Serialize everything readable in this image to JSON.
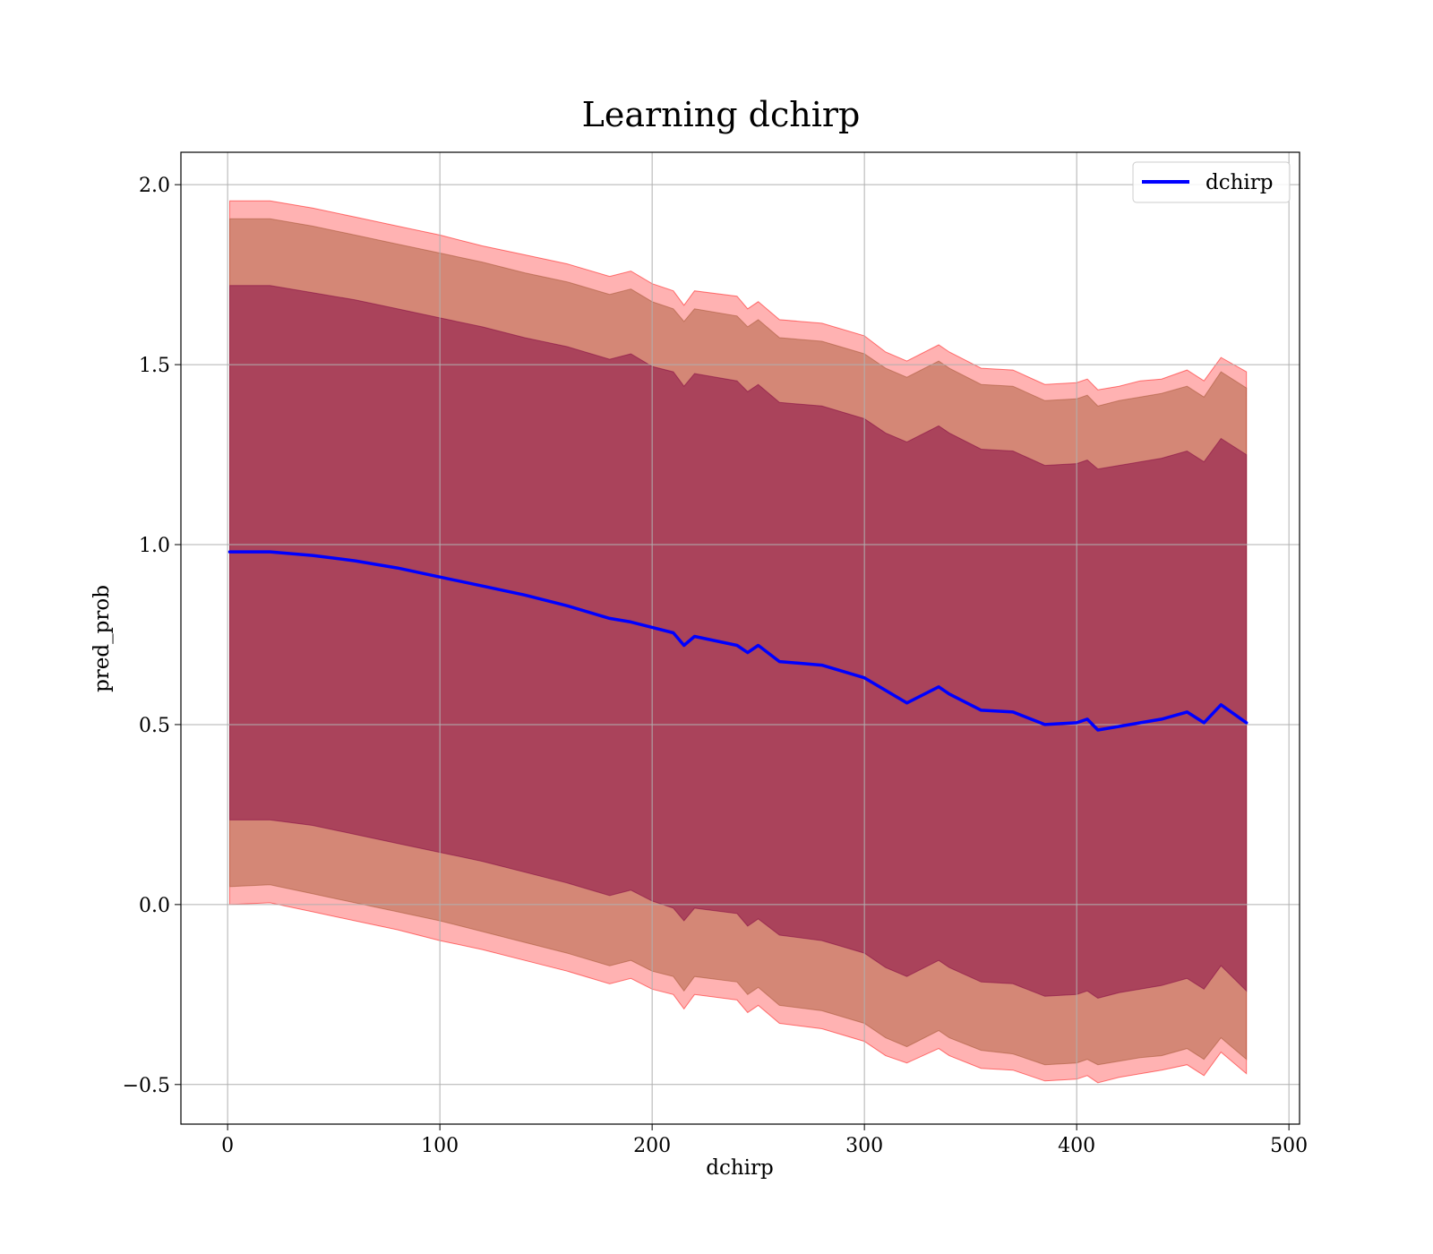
{
  "chart_data": {
    "type": "line",
    "title": "Learning dchirp",
    "xlabel": "dchirp",
    "ylabel": "pred_prob",
    "xlim": [
      -22,
      505
    ],
    "ylim": [
      -0.61,
      2.09
    ],
    "x_ticks": [
      0,
      100,
      200,
      300,
      400,
      500
    ],
    "x_tick_labels": [
      "0",
      "100",
      "200",
      "300",
      "400",
      "500"
    ],
    "y_ticks": [
      -0.5,
      0.0,
      0.5,
      1.0,
      1.5,
      2.0
    ],
    "y_tick_labels": [
      "−0.5",
      "0.0",
      "0.5",
      "1.0",
      "1.5",
      "2.0"
    ],
    "grid": true,
    "legend_position": "top-right",
    "colors": {
      "line": "#0000ff",
      "band_outer": "#ff0000",
      "band_middle": "#a0522d",
      "band_inner": "#800040",
      "grid": "#b0b0b0"
    },
    "x": [
      1,
      20,
      40,
      60,
      80,
      100,
      120,
      140,
      160,
      180,
      190,
      200,
      210,
      215,
      220,
      240,
      245,
      250,
      260,
      280,
      300,
      310,
      320,
      335,
      340,
      355,
      370,
      385,
      400,
      405,
      410,
      420,
      430,
      440,
      452,
      460,
      468,
      480
    ],
    "series": [
      {
        "name": "dchirp",
        "values": [
          0.98,
          0.98,
          0.97,
          0.955,
          0.935,
          0.91,
          0.885,
          0.86,
          0.83,
          0.795,
          0.785,
          0.77,
          0.755,
          0.72,
          0.745,
          0.72,
          0.7,
          0.72,
          0.675,
          0.665,
          0.63,
          0.595,
          0.56,
          0.605,
          0.585,
          0.54,
          0.535,
          0.5,
          0.505,
          0.515,
          0.485,
          0.495,
          0.505,
          0.515,
          0.535,
          0.505,
          0.555,
          0.505
        ]
      }
    ],
    "bands": [
      {
        "level": "outer",
        "upper": [
          1.955,
          1.955,
          1.935,
          1.91,
          1.885,
          1.86,
          1.83,
          1.805,
          1.78,
          1.745,
          1.76,
          1.725,
          1.705,
          1.665,
          1.705,
          1.69,
          1.655,
          1.675,
          1.625,
          1.615,
          1.58,
          1.535,
          1.51,
          1.555,
          1.535,
          1.49,
          1.485,
          1.445,
          1.45,
          1.46,
          1.43,
          1.44,
          1.455,
          1.46,
          1.485,
          1.455,
          1.52,
          1.48
        ],
        "lower": [
          0.0,
          0.005,
          -0.02,
          -0.045,
          -0.07,
          -0.1,
          -0.125,
          -0.155,
          -0.185,
          -0.22,
          -0.205,
          -0.235,
          -0.25,
          -0.29,
          -0.25,
          -0.265,
          -0.3,
          -0.28,
          -0.33,
          -0.345,
          -0.38,
          -0.42,
          -0.44,
          -0.4,
          -0.42,
          -0.455,
          -0.46,
          -0.49,
          -0.485,
          -0.475,
          -0.495,
          -0.48,
          -0.47,
          -0.46,
          -0.445,
          -0.475,
          -0.41,
          -0.47
        ]
      },
      {
        "level": "middle",
        "upper": [
          1.905,
          1.905,
          1.885,
          1.86,
          1.835,
          1.81,
          1.785,
          1.755,
          1.73,
          1.695,
          1.71,
          1.675,
          1.655,
          1.62,
          1.655,
          1.635,
          1.605,
          1.625,
          1.575,
          1.565,
          1.53,
          1.49,
          1.465,
          1.51,
          1.49,
          1.445,
          1.44,
          1.4,
          1.405,
          1.415,
          1.385,
          1.4,
          1.41,
          1.42,
          1.44,
          1.41,
          1.48,
          1.435
        ],
        "lower": [
          0.05,
          0.055,
          0.03,
          0.005,
          -0.02,
          -0.045,
          -0.075,
          -0.105,
          -0.135,
          -0.17,
          -0.155,
          -0.185,
          -0.2,
          -0.24,
          -0.2,
          -0.215,
          -0.25,
          -0.23,
          -0.28,
          -0.295,
          -0.33,
          -0.37,
          -0.395,
          -0.35,
          -0.37,
          -0.405,
          -0.415,
          -0.445,
          -0.44,
          -0.43,
          -0.445,
          -0.435,
          -0.425,
          -0.42,
          -0.4,
          -0.43,
          -0.37,
          -0.43
        ]
      },
      {
        "level": "inner",
        "upper": [
          1.72,
          1.72,
          1.7,
          1.68,
          1.655,
          1.63,
          1.605,
          1.575,
          1.55,
          1.515,
          1.53,
          1.495,
          1.48,
          1.44,
          1.475,
          1.455,
          1.425,
          1.445,
          1.395,
          1.385,
          1.35,
          1.31,
          1.285,
          1.33,
          1.31,
          1.265,
          1.26,
          1.22,
          1.225,
          1.235,
          1.21,
          1.22,
          1.23,
          1.24,
          1.26,
          1.23,
          1.295,
          1.25
        ],
        "lower": [
          0.235,
          0.235,
          0.22,
          0.195,
          0.17,
          0.145,
          0.12,
          0.09,
          0.06,
          0.025,
          0.04,
          0.01,
          -0.01,
          -0.045,
          -0.01,
          -0.025,
          -0.06,
          -0.04,
          -0.085,
          -0.1,
          -0.135,
          -0.175,
          -0.2,
          -0.155,
          -0.175,
          -0.215,
          -0.22,
          -0.255,
          -0.25,
          -0.24,
          -0.26,
          -0.245,
          -0.235,
          -0.225,
          -0.205,
          -0.235,
          -0.17,
          -0.24
        ]
      }
    ]
  }
}
